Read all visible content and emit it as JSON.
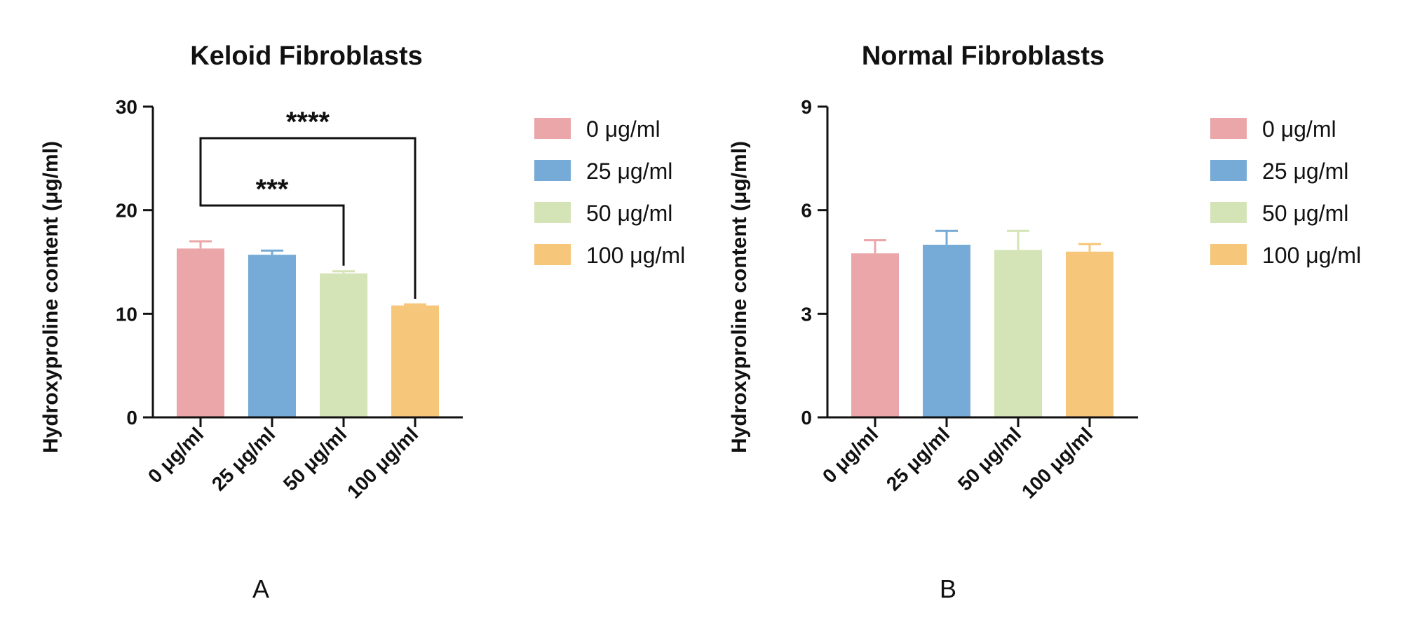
{
  "chart_data": [
    {
      "type": "bar",
      "panel_label": "A",
      "title": "Keloid Fibroblasts",
      "ylabel": "Hydroxyproline content (μg/ml)",
      "xlabel": "",
      "categories": [
        "0 μg/ml",
        "25 μg/ml",
        "50 μg/ml",
        "100 μg/ml"
      ],
      "values": [
        16.3,
        15.7,
        13.9,
        10.8
      ],
      "errors": [
        0.7,
        0.4,
        0.2,
        0.1
      ],
      "ylim": [
        0,
        30
      ],
      "yticks": [
        "0",
        "10",
        "20",
        "30"
      ],
      "colors": [
        "#EAA6A8",
        "#75ABD6",
        "#D5E4B7",
        "#F6C67A"
      ],
      "legend": [
        "0 μg/ml",
        "25 μg/ml",
        "50 μg/ml",
        "100 μg/ml"
      ],
      "legend_position": "right",
      "significance": [
        {
          "from": "0 μg/ml",
          "to": "50 μg/ml",
          "label": "***"
        },
        {
          "from": "0 μg/ml",
          "to": "100 μg/ml",
          "label": "****"
        }
      ]
    },
    {
      "type": "bar",
      "panel_label": "B",
      "title": "Normal Fibroblasts",
      "ylabel": "Hydroxyproline content (μg/ml)",
      "xlabel": "",
      "categories": [
        "0 μg/ml",
        "25 μg/ml",
        "50 μg/ml",
        "100 μg/ml"
      ],
      "values": [
        4.75,
        5.0,
        4.85,
        4.8
      ],
      "errors": [
        0.38,
        0.4,
        0.55,
        0.22
      ],
      "ylim": [
        0,
        9
      ],
      "yticks": [
        "0",
        "3",
        "6",
        "9"
      ],
      "colors": [
        "#EAA6A8",
        "#75ABD6",
        "#D5E4B7",
        "#F6C67A"
      ],
      "legend": [
        "0 μg/ml",
        "25 μg/ml",
        "50 μg/ml",
        "100 μg/ml"
      ],
      "legend_position": "right",
      "significance": []
    }
  ]
}
